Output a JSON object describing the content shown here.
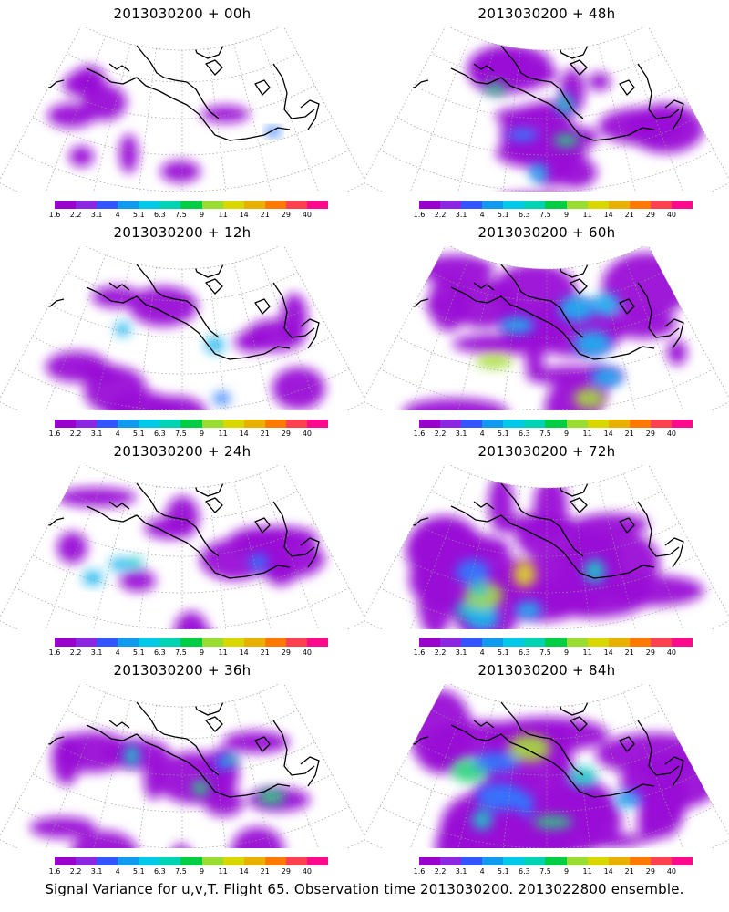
{
  "legend": {
    "labels": [
      "1.6",
      "2.2",
      "3.1",
      "4",
      "5.1",
      "6.3",
      "7.5",
      "9",
      "11",
      "14",
      "21",
      "29",
      "40"
    ],
    "colors": [
      "#9900cc",
      "#8b27e0",
      "#3355ff",
      "#1199ee",
      "#00c8e6",
      "#00d2b4",
      "#00cc44",
      "#99dd33",
      "#d8d800",
      "#e8b000",
      "#ff7800",
      "#ff4050",
      "#ff0a8c"
    ]
  },
  "panels": [
    {
      "title": "2013030200 + 00h",
      "intensity": 0.1
    },
    {
      "title": "2013030200 + 48h",
      "intensity": 0.5
    },
    {
      "title": "2013030200 + 12h",
      "intensity": 0.25
    },
    {
      "title": "2013030200 + 60h",
      "intensity": 0.68
    },
    {
      "title": "2013030200 + 24h",
      "intensity": 0.35
    },
    {
      "title": "2013030200 + 72h",
      "intensity": 0.8
    },
    {
      "title": "2013030200 + 36h",
      "intensity": 0.45
    },
    {
      "title": "2013030200 + 84h",
      "intensity": 0.95
    }
  ],
  "caption": "Signal Variance for u,v,T. Flight 65. Observation time 2013030200. 2013022800 ensemble.",
  "colors": {
    "coastline": "#000000",
    "graticule": "#9a9a9a"
  }
}
